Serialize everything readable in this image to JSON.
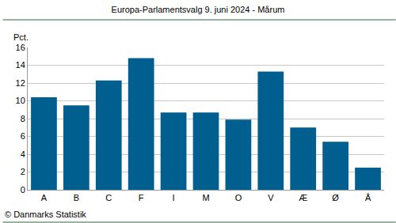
{
  "chart_data": {
    "type": "bar",
    "title": "Europa-Parlamentsvalg 9. juni 2024 - Mårum",
    "ylabel": "Pct.",
    "source": "© Danmarks Statistik",
    "categories": [
      "A",
      "B",
      "C",
      "F",
      "I",
      "M",
      "O",
      "V",
      "Æ",
      "Ø",
      "Å"
    ],
    "values": [
      10.4,
      9.5,
      12.3,
      14.8,
      8.7,
      8.7,
      7.9,
      13.3,
      7.0,
      5.4,
      2.5
    ],
    "color": "#005f8f",
    "ylim": [
      0,
      16
    ],
    "yticks": [
      0,
      2,
      4,
      6,
      8,
      10,
      12,
      14,
      16
    ],
    "grid": true
  }
}
